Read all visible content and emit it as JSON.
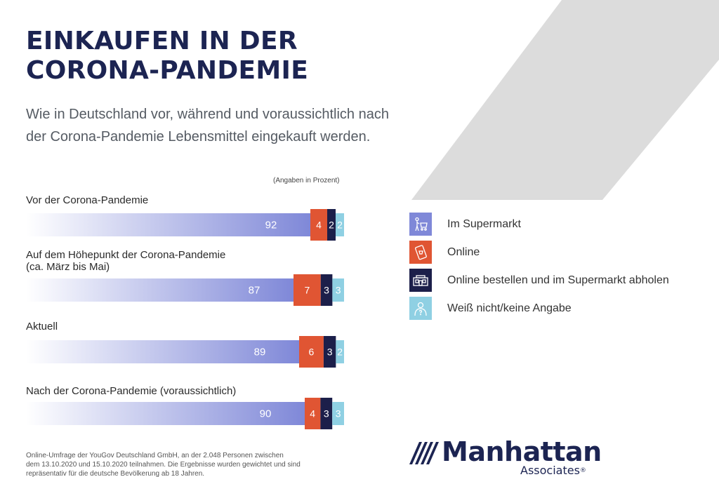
{
  "title": {
    "line1": "EINKAUFEN IN DER",
    "line2": "CORONA-PANDEMIE"
  },
  "subtitle": {
    "line1": "Wie in Deutschland vor, während und voraussichtlich nach",
    "line2": "der Corona-Pandemie Lebensmittel eingekauft werden."
  },
  "colors": {
    "title": "#1c2452",
    "supermarkt_gradient_start": "#ffffff",
    "supermarkt_gradient_end": "#7f88d8",
    "online": "#e05533",
    "abholen": "#1c1f4a",
    "weiss_nicht": "#8fd0e3",
    "deco_gray": "#dcdcdc"
  },
  "chart_data": {
    "type": "bar",
    "orientation": "horizontal",
    "stacked": true,
    "unit_note": "(Angaben in Prozent)",
    "categories": [
      {
        "lines": [
          "Vor der Corona-Pandemie"
        ]
      },
      {
        "lines": [
          "Auf dem Höhepunkt der Corona-Pandemie",
          "(ca. März bis Mai)"
        ]
      },
      {
        "lines": [
          "Aktuell"
        ]
      },
      {
        "lines": [
          "Nach der Corona-Pandemie (voraussichtlich)"
        ]
      }
    ],
    "series": [
      {
        "name": "Im Supermarkt",
        "icon": "shopping-cart-icon",
        "color": "#7f88d8",
        "values": [
          92,
          87,
          89,
          90
        ]
      },
      {
        "name": "Online",
        "icon": "smartphone-shopping-icon",
        "color": "#e05533",
        "values": [
          4,
          7,
          6,
          4
        ]
      },
      {
        "name": "Online bestellen und im Supermarkt abholen",
        "icon": "store-pickup-icon",
        "color": "#1c1f4a",
        "values": [
          2,
          3,
          3,
          3
        ]
      },
      {
        "name": "Weiß nicht/keine Angabe",
        "icon": "person-question-icon",
        "color": "#8fd0e3",
        "values": [
          2,
          3,
          2,
          3
        ]
      }
    ],
    "legend_position": "right"
  },
  "footnote": {
    "line1": "Online-Umfrage der YouGov Deutschland GmbH, an der 2.048 Personen zwischen",
    "line2": "dem 13.10.2020 und 15.10.2020 teilnahmen. Die Ergebnisse wurden gewichtet und sind",
    "line3": "repräsentativ für die deutsche Bevölkerung ab 18 Jahren."
  },
  "logo": {
    "name": "Manhattan",
    "sub": "Associates",
    "mark": "®"
  }
}
